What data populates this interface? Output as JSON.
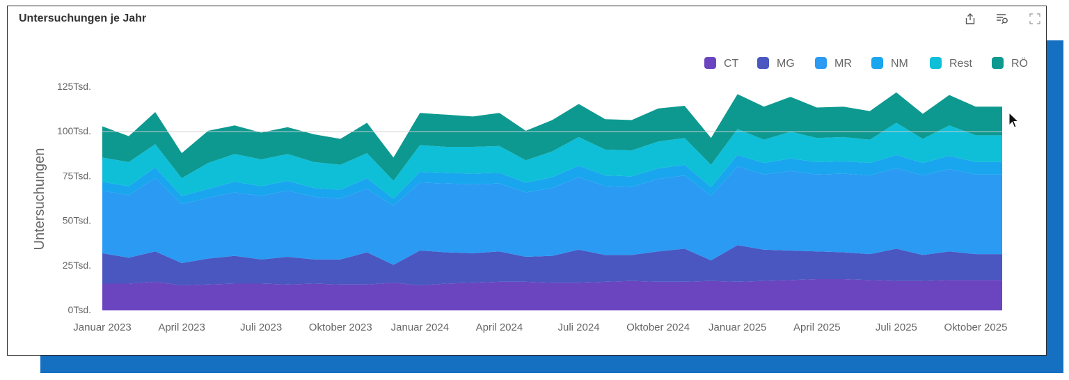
{
  "card": {
    "title": "Untersuchungen je Jahr"
  },
  "toolbar": {
    "share": "share-icon",
    "filter": "filter-search-icon",
    "expand": "expand-icon"
  },
  "colors": {
    "CT": "#6a45bf",
    "MG": "#4a57c0",
    "MR": "#2a9af3",
    "NM": "#1aa6ee",
    "Rest": "#0ebfd7",
    "RÖ": "#0d9990",
    "gridline": "#d0d0d0",
    "axis_text": "#666666"
  },
  "chart_data": {
    "type": "area",
    "stacked": true,
    "title": "Untersuchungen je Jahr",
    "ylabel": "Untersuchungen",
    "xlabel": "",
    "ylim": [
      0,
      125000
    ],
    "ytick_values": [
      0,
      25000,
      50000,
      75000,
      100000,
      125000
    ],
    "ytick_labels": [
      "0Tsd.",
      "25Tsd.",
      "50Tsd.",
      "75Tsd.",
      "100Tsd.",
      "125Tsd."
    ],
    "xtick_labels": [
      "Januar 2023",
      "April 2023",
      "Juli 2023",
      "Oktober 2023",
      "Januar 2024",
      "April 2024",
      "Juli 2024",
      "Oktober 2024",
      "Januar 2025",
      "April 2025",
      "Juli 2025",
      "Oktober 2025"
    ],
    "xtick_index": [
      0,
      3,
      6,
      9,
      12,
      15,
      18,
      21,
      24,
      27,
      30,
      33
    ],
    "legend_position": "top-right",
    "categories": [
      "Jan 2023",
      "Feb 2023",
      "Mar 2023",
      "Apr 2023",
      "May 2023",
      "Jun 2023",
      "Jul 2023",
      "Aug 2023",
      "Sep 2023",
      "Oct 2023",
      "Nov 2023",
      "Dec 2023",
      "Jan 2024",
      "Feb 2024",
      "Mar 2024",
      "Apr 2024",
      "May 2024",
      "Jun 2024",
      "Jul 2024",
      "Aug 2024",
      "Sep 2024",
      "Oct 2024",
      "Nov 2024",
      "Dec 2024",
      "Jan 2025",
      "Feb 2025",
      "Mar 2025",
      "Apr 2025",
      "May 2025",
      "Jun 2025",
      "Jul 2025",
      "Aug 2025",
      "Sep 2025",
      "Oct 2025",
      "Nov 2025"
    ],
    "series": [
      {
        "name": "CT",
        "values": [
          15000,
          15000,
          16000,
          14000,
          14500,
          15000,
          15000,
          14500,
          15000,
          14500,
          14500,
          15500,
          14000,
          15000,
          15500,
          16000,
          16000,
          15500,
          15500,
          16000,
          16500,
          16000,
          16000,
          16500,
          16000,
          16500,
          17000,
          17500,
          17500,
          17000,
          16500,
          16500,
          17000,
          17000,
          17000
        ]
      },
      {
        "name": "MG",
        "values": [
          17000,
          14500,
          17000,
          12500,
          14500,
          15500,
          13500,
          15500,
          13500,
          14000,
          18000,
          10000,
          19500,
          17500,
          16500,
          17000,
          14000,
          15000,
          18500,
          15000,
          14500,
          17000,
          18500,
          11500,
          20500,
          17500,
          16500,
          15500,
          15000,
          14500,
          18000,
          14500,
          16000,
          14500,
          14500
        ]
      },
      {
        "name": "MR",
        "values": [
          35000,
          35000,
          41000,
          33000,
          34000,
          35500,
          35500,
          37000,
          35000,
          34000,
          35500,
          33000,
          38000,
          38500,
          38500,
          38000,
          36000,
          38000,
          40500,
          38500,
          38000,
          40500,
          41000,
          36000,
          44000,
          42000,
          44500,
          43000,
          44000,
          44000,
          45000,
          44500,
          46000,
          44500,
          44500
        ]
      },
      {
        "name": "NM",
        "values": [
          5000,
          5000,
          6000,
          4500,
          5000,
          6000,
          5500,
          5500,
          5000,
          5000,
          6000,
          4000,
          6000,
          6000,
          6000,
          6000,
          5500,
          6000,
          6500,
          6000,
          6000,
          6000,
          6000,
          5000,
          6500,
          6500,
          7000,
          7000,
          7000,
          7000,
          7500,
          7000,
          7500,
          7000,
          7000
        ]
      },
      {
        "name": "Rest",
        "values": [
          13500,
          13500,
          13000,
          10000,
          14500,
          15500,
          15000,
          15000,
          14500,
          14000,
          14000,
          10000,
          15000,
          14500,
          15000,
          15000,
          12500,
          14500,
          16000,
          14500,
          14500,
          15000,
          15000,
          12500,
          14500,
          13000,
          15000,
          13500,
          13500,
          13000,
          18000,
          13500,
          17000,
          15000,
          15000
        ]
      },
      {
        "name": "RÖ",
        "values": [
          17500,
          14500,
          18000,
          14000,
          18000,
          16000,
          15000,
          15000,
          15500,
          14500,
          17000,
          13000,
          18000,
          18000,
          17000,
          18500,
          16500,
          17500,
          18500,
          17000,
          17000,
          18500,
          18000,
          15000,
          19500,
          18500,
          19500,
          17000,
          17000,
          16000,
          17000,
          14000,
          17000,
          16000,
          16000
        ]
      }
    ]
  }
}
